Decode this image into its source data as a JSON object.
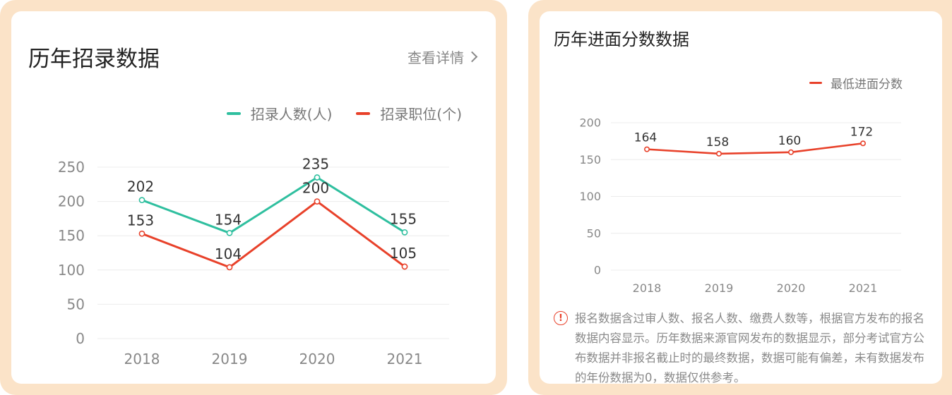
{
  "left_card": {
    "title": "历年招录数据",
    "detail_link": "查看详情"
  },
  "right_card": {
    "title": "历年进面分数数据",
    "notice": "报名数据含过审人数、报名人数、缴费人数等，根据官方发布的报名数据内容显示。历年数据来源官网发布的数据显示，部分考试官方公布数据并非报名截止时的最终数据，数据可能有偏差，未有数据发布的年份数据为0，数据仅供参考。"
  },
  "colors": {
    "teal": "#2fbf9f",
    "red": "#e8412a",
    "grid": "#ececec",
    "axis_text": "#888888",
    "label_text": "#333333"
  },
  "chart_data": [
    {
      "type": "line",
      "categories": [
        "2018",
        "2019",
        "2020",
        "2021"
      ],
      "series": [
        {
          "name": "招录人数(人)",
          "values": [
            202,
            154,
            235,
            155
          ],
          "color": "#2fbf9f"
        },
        {
          "name": "招录职位(个)",
          "values": [
            153,
            104,
            200,
            105
          ],
          "color": "#e8412a"
        }
      ],
      "yticks": [
        "0",
        "50",
        "100",
        "150",
        "200",
        "250"
      ],
      "ylim": [
        0,
        250
      ],
      "legend": "top-right",
      "grid": true
    },
    {
      "type": "line",
      "categories": [
        "2018",
        "2019",
        "2020",
        "2021"
      ],
      "series": [
        {
          "name": "最低进面分数",
          "values": [
            164,
            158,
            160,
            172
          ],
          "color": "#e8412a"
        }
      ],
      "yticks": [
        "0",
        "50",
        "100",
        "150",
        "200"
      ],
      "ylim": [
        0,
        200
      ],
      "legend": "top-right",
      "grid": true
    }
  ]
}
